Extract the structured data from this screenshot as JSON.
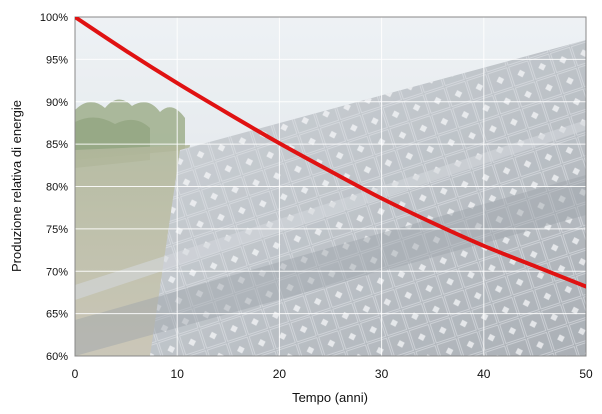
{
  "colors": {
    "line": "#e01212",
    "grid": "#ffffff",
    "sky": "#dfe5ea",
    "panel": "#9aa1a8",
    "vegetation": "#6f8a5a"
  },
  "chart_data": {
    "type": "line",
    "title": "",
    "xlabel": "Tempo (anni)",
    "ylabel": "Produzione relativa di energie",
    "xlim": [
      0,
      50
    ],
    "ylim": [
      60,
      100
    ],
    "x_ticks": [
      0,
      10,
      20,
      30,
      40,
      50
    ],
    "y_ticks": [
      60,
      65,
      70,
      75,
      80,
      85,
      90,
      95,
      100
    ],
    "x_tick_labels": [
      "0",
      "10",
      "20",
      "30",
      "40",
      "50"
    ],
    "y_tick_labels": [
      "60%",
      "65%",
      "70%",
      "75%",
      "80%",
      "85%",
      "90%",
      "95%",
      "100%"
    ],
    "grid": true,
    "background": "photo of solar panels in a field",
    "series": [
      {
        "x": [
          0,
          5,
          10,
          15,
          20,
          25,
          30,
          35,
          40,
          45,
          50
        ],
        "y": [
          100,
          96.0,
          92.2,
          88.6,
          85.1,
          81.8,
          78.6,
          75.7,
          73.0,
          70.6,
          68.2
        ]
      }
    ]
  }
}
